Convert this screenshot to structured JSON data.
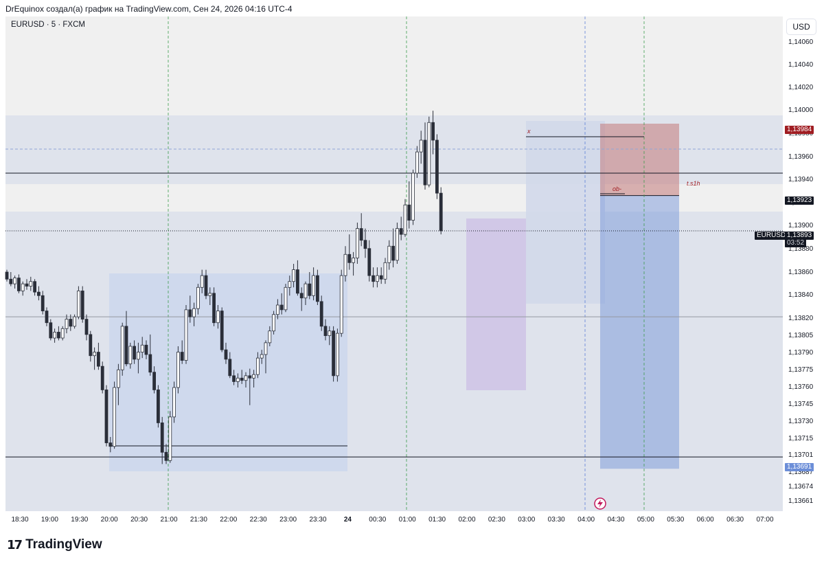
{
  "header": {
    "caption": "DrEquinox создал(а) график на TradingView.com, Сен 24, 2026 04:16 UTC-4"
  },
  "symbol": {
    "label": "EURUSD · 5 · FXCM"
  },
  "currency_button": {
    "label": "USD"
  },
  "price_tags": {
    "sl": {
      "text": "1,13984",
      "color": "#a01d22"
    },
    "last": {
      "text": "1,13923",
      "color": "#131722"
    },
    "current_name": {
      "text": "EURUSD",
      "color": "#131722"
    },
    "current_price": {
      "text": "1,13893",
      "color": "#131722"
    },
    "countdown": {
      "text": "03:52",
      "color": "#131722"
    },
    "tp": {
      "text": "1,13691",
      "color": "#5b7ed6"
    }
  },
  "annotations": {
    "x_mark": "x",
    "ob": "ob-",
    "ts1h": "t.s1h"
  },
  "brand": {
    "name": "TradingView"
  },
  "colors": {
    "up_body": "#ffffff",
    "down_body": "#2a2e39",
    "wick": "#2a2e39",
    "zone_blue": "#6c8ed8",
    "zone_red": "#c27a7a",
    "zone_purple": "#b9a6d9"
  },
  "chart_data": {
    "type": "candlestick",
    "symbol": "EURUSD",
    "timeframe": "5",
    "source": "FXCM",
    "ylim": [
      1.13655,
      1.14075
    ],
    "y_ticks": [
      "1,14060",
      "1,14040",
      "1,14020",
      "1,14000",
      "1,13980",
      "1,13960",
      "1,13940",
      "1,13920",
      "1,13900",
      "1,13880",
      "1,13860",
      "1,13840",
      "1,13820",
      "1,13805",
      "1,13790",
      "1,13775",
      "1,13760",
      "1,13745",
      "1,13730",
      "1,13715",
      "1,13701",
      "1,13687",
      "1,13674",
      "1,13661"
    ],
    "x_ticks": [
      "18:30",
      "19:00",
      "19:30",
      "20:00",
      "20:30",
      "21:00",
      "21:30",
      "22:00",
      "22:30",
      "23:00",
      "23:30",
      "24",
      "00:30",
      "01:00",
      "01:30",
      "02:00",
      "02:30",
      "03:00",
      "03:30",
      "04:00",
      "04:30",
      "05:00",
      "05:30",
      "06:00",
      "06:30",
      "07:00"
    ],
    "ohlc": [
      [
        1.13858,
        1.1386,
        1.1385,
        1.13852
      ],
      [
        1.13852,
        1.13858,
        1.13846,
        1.13848
      ],
      [
        1.13848,
        1.13855,
        1.13844,
        1.13853
      ],
      [
        1.13853,
        1.13856,
        1.1384,
        1.13842
      ],
      [
        1.13842,
        1.1385,
        1.13838,
        1.13848
      ],
      [
        1.13848,
        1.13852,
        1.13843,
        1.13846
      ],
      [
        1.13846,
        1.13854,
        1.13842,
        1.1385
      ],
      [
        1.1385,
        1.13852,
        1.13838,
        1.13841
      ],
      [
        1.13841,
        1.13846,
        1.13834,
        1.13838
      ],
      [
        1.13838,
        1.13842,
        1.13822,
        1.13825
      ],
      [
        1.13825,
        1.13828,
        1.13812,
        1.13815
      ],
      [
        1.13815,
        1.13818,
        1.138,
        1.13802
      ],
      [
        1.13802,
        1.1381,
        1.13798,
        1.13807
      ],
      [
        1.13807,
        1.13812,
        1.138,
        1.13802
      ],
      [
        1.13802,
        1.13812,
        1.138,
        1.1381
      ],
      [
        1.1381,
        1.13822,
        1.13806,
        1.13818
      ],
      [
        1.13818,
        1.13822,
        1.13808,
        1.13812
      ],
      [
        1.13812,
        1.13822,
        1.1381,
        1.1382
      ],
      [
        1.1382,
        1.13846,
        1.13818,
        1.13842
      ],
      [
        1.13842,
        1.13846,
        1.13815,
        1.13818
      ],
      [
        1.13818,
        1.13822,
        1.138,
        1.13805
      ],
      [
        1.13805,
        1.13808,
        1.13782,
        1.13787
      ],
      [
        1.13787,
        1.13794,
        1.13775,
        1.1379
      ],
      [
        1.1379,
        1.13798,
        1.13775,
        1.13778
      ],
      [
        1.13778,
        1.13782,
        1.13755,
        1.13758
      ],
      [
        1.13758,
        1.13762,
        1.1371,
        1.13713
      ],
      [
        1.13713,
        1.13718,
        1.13705,
        1.1371
      ],
      [
        1.1371,
        1.13765,
        1.13708,
        1.1376
      ],
      [
        1.1376,
        1.1378,
        1.13745,
        1.13775
      ],
      [
        1.13775,
        1.13815,
        1.1377,
        1.13812
      ],
      [
        1.13812,
        1.13825,
        1.13778,
        1.1378
      ],
      [
        1.1378,
        1.13798,
        1.13776,
        1.13795
      ],
      [
        1.13795,
        1.138,
        1.1378,
        1.13784
      ],
      [
        1.13784,
        1.13798,
        1.13772,
        1.1379
      ],
      [
        1.1379,
        1.13803,
        1.13785,
        1.13796
      ],
      [
        1.13796,
        1.138,
        1.13784,
        1.13788
      ],
      [
        1.13788,
        1.13805,
        1.1377,
        1.13773
      ],
      [
        1.13773,
        1.13778,
        1.13755,
        1.13758
      ],
      [
        1.13758,
        1.13762,
        1.13726,
        1.1373
      ],
      [
        1.1373,
        1.13735,
        1.13695,
        1.13705
      ],
      [
        1.13705,
        1.13712,
        1.13695,
        1.13698
      ],
      [
        1.13698,
        1.1374,
        1.13696,
        1.13735
      ],
      [
        1.13735,
        1.13765,
        1.1373,
        1.1376
      ],
      [
        1.1376,
        1.13795,
        1.13755,
        1.1379
      ],
      [
        1.1379,
        1.138,
        1.1378,
        1.13783
      ],
      [
        1.13783,
        1.1383,
        1.1378,
        1.13826
      ],
      [
        1.13826,
        1.13838,
        1.13815,
        1.1382
      ],
      [
        1.1382,
        1.13832,
        1.13812,
        1.13827
      ],
      [
        1.13827,
        1.13848,
        1.13822,
        1.13845
      ],
      [
        1.13845,
        1.1386,
        1.1384,
        1.13855
      ],
      [
        1.13855,
        1.1386,
        1.13835,
        1.13838
      ],
      [
        1.13838,
        1.13845,
        1.1383,
        1.1384
      ],
      [
        1.1384,
        1.13845,
        1.13812,
        1.13815
      ],
      [
        1.13815,
        1.1383,
        1.1381,
        1.13825
      ],
      [
        1.13825,
        1.13828,
        1.1379,
        1.13792
      ],
      [
        1.13792,
        1.13798,
        1.1378,
        1.13784
      ],
      [
        1.13784,
        1.1379,
        1.13768,
        1.1377
      ],
      [
        1.1377,
        1.13775,
        1.13762,
        1.13765
      ],
      [
        1.13765,
        1.13772,
        1.1376,
        1.13768
      ],
      [
        1.13768,
        1.13775,
        1.13763,
        1.13766
      ],
      [
        1.13766,
        1.13773,
        1.1376,
        1.1377
      ],
      [
        1.1377,
        1.13776,
        1.13745,
        1.13768
      ],
      [
        1.13768,
        1.13775,
        1.1376,
        1.13771
      ],
      [
        1.13771,
        1.1379,
        1.13768,
        1.13785
      ],
      [
        1.13785,
        1.13792,
        1.1378,
        1.13788
      ],
      [
        1.13788,
        1.138,
        1.13772,
        1.13798
      ],
      [
        1.13798,
        1.13812,
        1.13795,
        1.13808
      ],
      [
        1.13808,
        1.13825,
        1.13805,
        1.13822
      ],
      [
        1.13822,
        1.13835,
        1.13818,
        1.1383
      ],
      [
        1.1383,
        1.1384,
        1.13822,
        1.13826
      ],
      [
        1.13826,
        1.13848,
        1.13824,
        1.13845
      ],
      [
        1.13845,
        1.13855,
        1.13838,
        1.1385
      ],
      [
        1.1385,
        1.13865,
        1.13845,
        1.1386
      ],
      [
        1.1386,
        1.13868,
        1.13838,
        1.1384
      ],
      [
        1.1384,
        1.13845,
        1.13825,
        1.13836
      ],
      [
        1.13836,
        1.1385,
        1.1383,
        1.13848
      ],
      [
        1.13848,
        1.13858,
        1.13835,
        1.13838
      ],
      [
        1.13838,
        1.13862,
        1.13834,
        1.13855
      ],
      [
        1.13855,
        1.1386,
        1.1383,
        1.13833
      ],
      [
        1.13833,
        1.13838,
        1.13808,
        1.13812
      ],
      [
        1.13812,
        1.13818,
        1.138,
        1.13804
      ],
      [
        1.13804,
        1.13812,
        1.13796,
        1.13808
      ],
      [
        1.13808,
        1.13812,
        1.13765,
        1.1377
      ],
      [
        1.1377,
        1.1381,
        1.13765,
        1.13806
      ],
      [
        1.13806,
        1.1386,
        1.13803,
        1.13855
      ],
      [
        1.13855,
        1.1388,
        1.1385,
        1.13873
      ],
      [
        1.13873,
        1.1389,
        1.1386,
        1.13866
      ],
      [
        1.13866,
        1.13875,
        1.13855,
        1.1387
      ],
      [
        1.1387,
        1.139,
        1.13865,
        1.13895
      ],
      [
        1.13895,
        1.13908,
        1.1388,
        1.13885
      ],
      [
        1.13885,
        1.13895,
        1.1387,
        1.13878
      ],
      [
        1.13878,
        1.13885,
        1.1385,
        1.13855
      ],
      [
        1.13855,
        1.13862,
        1.13845,
        1.1385
      ],
      [
        1.1385,
        1.13862,
        1.13845,
        1.13855
      ],
      [
        1.13855,
        1.13862,
        1.13848,
        1.13852
      ],
      [
        1.13852,
        1.1387,
        1.13848,
        1.13866
      ],
      [
        1.13866,
        1.13885,
        1.1386,
        1.1388
      ],
      [
        1.1388,
        1.13895,
        1.13862,
        1.13868
      ],
      [
        1.13868,
        1.139,
        1.13865,
        1.13895
      ],
      [
        1.13895,
        1.13905,
        1.13885,
        1.1389
      ],
      [
        1.1389,
        1.1392,
        1.13888,
        1.13915
      ],
      [
        1.13915,
        1.13935,
        1.13895,
        1.13902
      ],
      [
        1.13902,
        1.13945,
        1.13898,
        1.13942
      ],
      [
        1.13942,
        1.13965,
        1.13938,
        1.1396
      ],
      [
        1.1396,
        1.13978,
        1.1395,
        1.1397
      ],
      [
        1.1397,
        1.13985,
        1.13928,
        1.13932
      ],
      [
        1.13932,
        1.1399,
        1.1393,
        1.13985
      ],
      [
        1.13985,
        1.13995,
        1.13958,
        1.1397
      ],
      [
        1.1397,
        1.13975,
        1.1392,
        1.13925
      ],
      [
        1.13925,
        1.1393,
        1.1389,
        1.13893
      ]
    ],
    "lines": [
      {
        "name": "level-1.13942",
        "y": 1.13942
      },
      {
        "name": "level-1.13701",
        "y": 1.13701
      },
      {
        "name": "level-1.13820",
        "y": 1.1382
      }
    ],
    "position": {
      "entry": 1.13923,
      "stop": 1.13984,
      "target": 1.13691
    },
    "current_price": 1.13893
  }
}
